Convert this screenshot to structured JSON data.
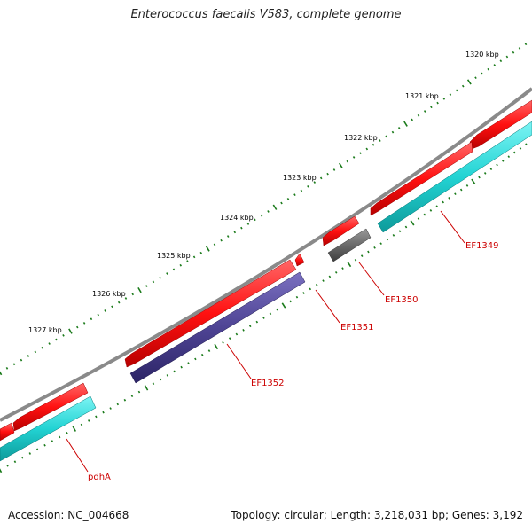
{
  "title": "Enterococcus faecalis V583, complete genome",
  "footer": {
    "accession": "Accession: NC_004668",
    "topology": "Topology: circular; Length: 3,218,031 bp; Genes: 3,192"
  },
  "colors": {
    "backbone": "#8a8a8a",
    "forward_gene": "#ff1111",
    "cds_cyan": "#22d3d3",
    "cds_purple": "#4e4494",
    "cds_gray": "#6a6a6a",
    "tick": "#1a7a1a",
    "label": "#cc0000"
  },
  "ruler": {
    "labels": [
      "1320 kbp",
      "1321 kbp",
      "1322 kbp",
      "1323 kbp",
      "1324 kbp",
      "1325 kbp",
      "1326 kbp",
      "1327 kbp"
    ]
  },
  "genes": [
    {
      "name": "EF1349",
      "strand": "reverse",
      "feature": "cds_cyan"
    },
    {
      "name": "EF1350",
      "strand": "reverse",
      "feature": "cds_gray"
    },
    {
      "name": "EF1351",
      "strand": "forward",
      "feature": "forward_gene"
    },
    {
      "name": "EF1352",
      "strand": "reverse",
      "feature": "cds_purple"
    },
    {
      "name": "pdhA",
      "strand": "reverse",
      "feature": "cds_cyan"
    }
  ]
}
